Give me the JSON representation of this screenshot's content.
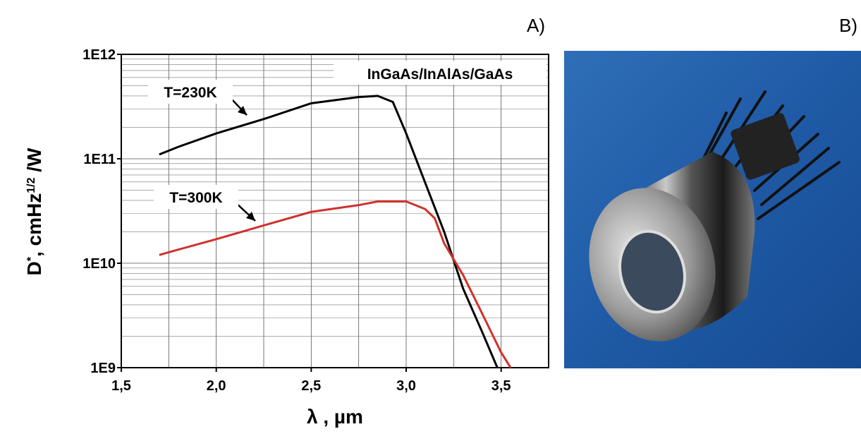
{
  "chart_data": {
    "type": "line",
    "panel_labels": [
      "A)",
      "B)"
    ],
    "annotation": "InGaAs/InAlAs/GaAs",
    "xlabel": "λ ,  µm",
    "ylabel": [
      "D",
      "*",
      ", cmHz",
      "1/2",
      " /W"
    ],
    "log_y": true,
    "grid": true,
    "xlim": [
      1.5,
      3.75
    ],
    "ylim": [
      1000000000.0,
      1000000000000.0
    ],
    "xticks": [
      {
        "value": 1.5,
        "label": "1,5"
      },
      {
        "value": 2.0,
        "label": "2,0"
      },
      {
        "value": 2.5,
        "label": "2,5"
      },
      {
        "value": 3.0,
        "label": "3,0"
      },
      {
        "value": 3.5,
        "label": "3,5"
      }
    ],
    "yticks": [
      {
        "value": 1000000000.0,
        "label": "1E9"
      },
      {
        "value": 10000000000.0,
        "label": "1E10"
      },
      {
        "value": 100000000000.0,
        "label": "1E11"
      },
      {
        "value": 1000000000000.0,
        "label": "1E12"
      }
    ],
    "series": [
      {
        "name": "T=230K",
        "color": "#000000",
        "x": [
          1.7,
          1.8,
          2.0,
          2.25,
          2.5,
          2.75,
          2.85,
          2.93,
          3.0,
          3.1,
          3.2,
          3.3,
          3.4,
          3.48
        ],
        "values": [
          110000000000.0,
          130000000000.0,
          175000000000.0,
          240000000000.0,
          340000000000.0,
          390000000000.0,
          400000000000.0,
          350000000000.0,
          175000000000.0,
          59000000000.0,
          20000000000.0,
          5700000000.0,
          2200000000.0,
          1000000000.0
        ]
      },
      {
        "name": "T=300K",
        "color": "#d0312d",
        "x": [
          1.7,
          1.8,
          2.0,
          2.25,
          2.5,
          2.75,
          2.85,
          3.0,
          3.1,
          3.15,
          3.2,
          3.3,
          3.4,
          3.5,
          3.55
        ],
        "values": [
          12000000000.0,
          13500000000.0,
          17000000000.0,
          23000000000.0,
          31000000000.0,
          36000000000.0,
          39000000000.0,
          39000000000.0,
          33000000000.0,
          27000000000.0,
          15500000000.0,
          7700000000.0,
          3300000000.0,
          1400000000.0,
          1000000000.0
        ]
      }
    ]
  }
}
